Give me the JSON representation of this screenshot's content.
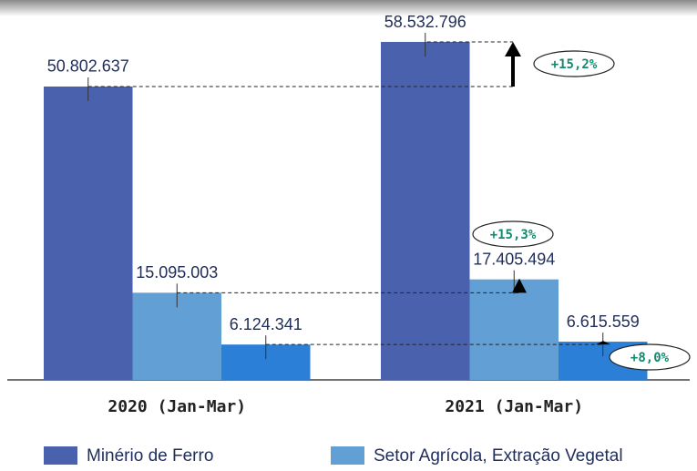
{
  "chart_data": {
    "type": "bar",
    "categories": [
      "2020 (Jan-Mar)",
      "2021 (Jan-Mar)"
    ],
    "series": [
      {
        "name": "Minério de Ferro",
        "color": "#4a62ae",
        "values": [
          50802637,
          58532796
        ],
        "value_labels": [
          "50.802.637",
          "58.532.796"
        ]
      },
      {
        "name": "Setor Agrícola, Extração Vegetal",
        "color": "#629fd4",
        "values": [
          15095003,
          17405494
        ],
        "value_labels": [
          "15.095.003",
          "17.405.494"
        ]
      },
      {
        "color": "#2b7fd6",
        "values": [
          6124341,
          6615559
        ],
        "value_labels": [
          "6.124.341",
          "6.615.559"
        ]
      }
    ],
    "annotations": [
      "+15,2%",
      "+15,3%",
      "+8,0%"
    ]
  }
}
